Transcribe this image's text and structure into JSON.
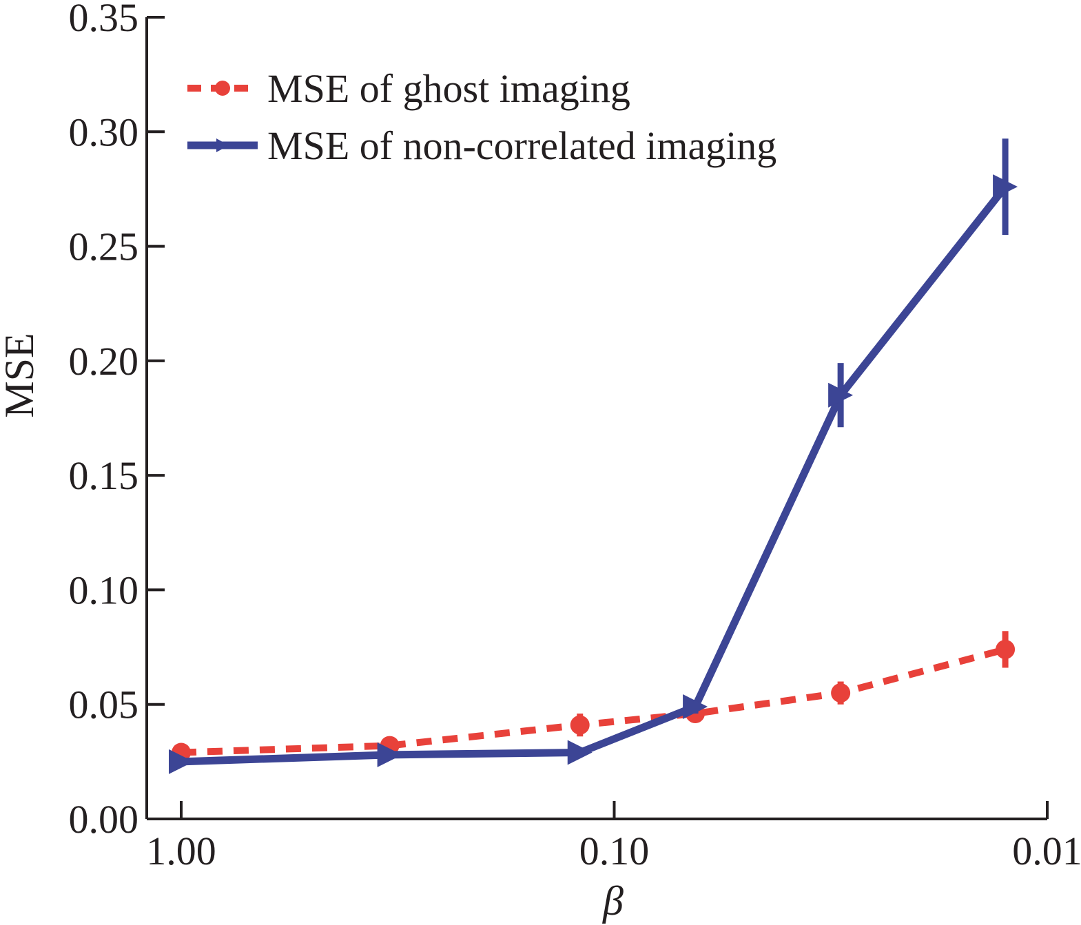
{
  "chart_data": {
    "type": "line",
    "xlabel": "β",
    "ylabel": "MSE",
    "xscale": "log",
    "xaxis_reversed": true,
    "xlim": [
      1.0,
      0.01
    ],
    "ylim": [
      0,
      0.35
    ],
    "x_ticks": [
      1.0,
      0.1,
      0.01
    ],
    "x_tick_labels": [
      "1.00",
      "0.10",
      "0.01"
    ],
    "y_ticks": [
      0,
      0.05,
      0.1,
      0.15,
      0.2,
      0.25,
      0.3,
      0.35
    ],
    "y_tick_labels": [
      "0.00",
      "0.05",
      "0.10",
      "0.15",
      "0.20",
      "0.25",
      "0.30",
      "0.35"
    ],
    "grid": false,
    "legend_position": "top-left",
    "series": [
      {
        "name": "MSE of ghost imaging",
        "color": "#e8413a",
        "line_style": "dashed",
        "marker": "circle",
        "x": [
          1.0,
          0.33,
          0.12,
          0.065,
          0.03,
          0.0125
        ],
        "y": [
          0.029,
          0.032,
          0.041,
          0.046,
          0.055,
          0.074
        ],
        "error": [
          0.002,
          0.002,
          0.005,
          0.003,
          0.005,
          0.008
        ]
      },
      {
        "name": "MSE of non-correlated imaging",
        "color": "#3c4595",
        "line_style": "solid",
        "marker": "triangle-right",
        "x": [
          1.0,
          0.33,
          0.12,
          0.065,
          0.03,
          0.0125
        ],
        "y": [
          0.025,
          0.028,
          0.029,
          0.049,
          0.185,
          0.276
        ],
        "error": [
          0.0015,
          0.0015,
          0.002,
          0.003,
          0.014,
          0.021
        ]
      }
    ]
  }
}
